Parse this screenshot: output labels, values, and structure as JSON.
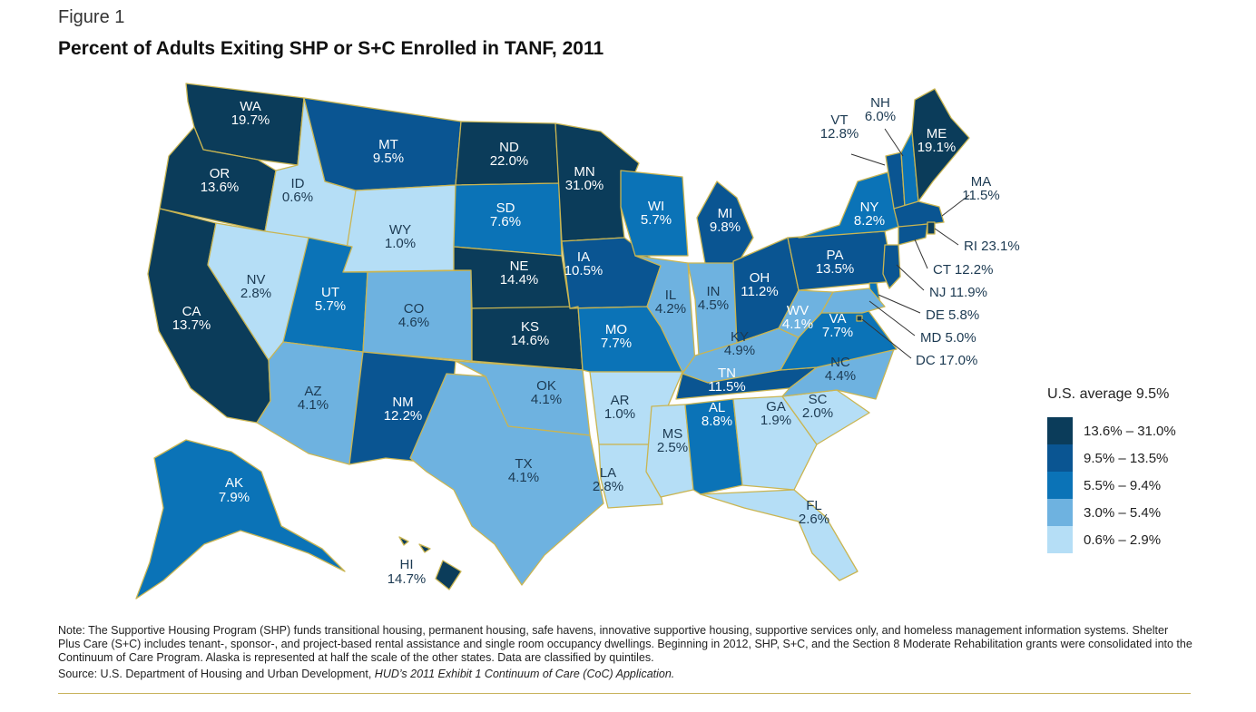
{
  "figure": {
    "label": "Figure 1",
    "title": "Percent of Adults Exiting SHP or S+C Enrolled in TANF, 2011"
  },
  "colors": {
    "q5": "#0b3c5a",
    "q4": "#0a5592",
    "q3": "#0b73b7",
    "q2": "#6eb2e0",
    "q1": "#b5def6",
    "border": "#c9b552"
  },
  "states": [
    {
      "abbr": "WA",
      "value": "19.7%",
      "q": 5
    },
    {
      "abbr": "OR",
      "value": "13.6%",
      "q": 5
    },
    {
      "abbr": "CA",
      "value": "13.7%",
      "q": 5
    },
    {
      "abbr": "ID",
      "value": "0.6%",
      "q": 1
    },
    {
      "abbr": "NV",
      "value": "2.8%",
      "q": 1
    },
    {
      "abbr": "MT",
      "value": "9.5%",
      "q": 4
    },
    {
      "abbr": "WY",
      "value": "1.0%",
      "q": 1
    },
    {
      "abbr": "UT",
      "value": "5.7%",
      "q": 3
    },
    {
      "abbr": "AZ",
      "value": "4.1%",
      "q": 2
    },
    {
      "abbr": "CO",
      "value": "4.6%",
      "q": 2
    },
    {
      "abbr": "NM",
      "value": "12.2%",
      "q": 4
    },
    {
      "abbr": "ND",
      "value": "22.0%",
      "q": 5
    },
    {
      "abbr": "SD",
      "value": "7.6%",
      "q": 3
    },
    {
      "abbr": "NE",
      "value": "14.4%",
      "q": 5
    },
    {
      "abbr": "KS",
      "value": "14.6%",
      "q": 5
    },
    {
      "abbr": "OK",
      "value": "4.1%",
      "q": 2
    },
    {
      "abbr": "TX",
      "value": "4.1%",
      "q": 2
    },
    {
      "abbr": "MN",
      "value": "31.0%",
      "q": 5
    },
    {
      "abbr": "IA",
      "value": "10.5%",
      "q": 4
    },
    {
      "abbr": "MO",
      "value": "7.7%",
      "q": 3
    },
    {
      "abbr": "AR",
      "value": "1.0%",
      "q": 1
    },
    {
      "abbr": "LA",
      "value": "2.8%",
      "q": 1
    },
    {
      "abbr": "WI",
      "value": "5.7%",
      "q": 3
    },
    {
      "abbr": "IL",
      "value": "4.2%",
      "q": 2
    },
    {
      "abbr": "MI",
      "value": "9.8%",
      "q": 4
    },
    {
      "abbr": "IN",
      "value": "4.5%",
      "q": 2
    },
    {
      "abbr": "OH",
      "value": "11.2%",
      "q": 4
    },
    {
      "abbr": "KY",
      "value": "4.9%",
      "q": 2
    },
    {
      "abbr": "TN",
      "value": "11.5%",
      "q": 4
    },
    {
      "abbr": "MS",
      "value": "2.5%",
      "q": 1
    },
    {
      "abbr": "AL",
      "value": "8.8%",
      "q": 3
    },
    {
      "abbr": "GA",
      "value": "1.9%",
      "q": 1
    },
    {
      "abbr": "FL",
      "value": "2.6%",
      "q": 1
    },
    {
      "abbr": "SC",
      "value": "2.0%",
      "q": 1
    },
    {
      "abbr": "NC",
      "value": "4.4%",
      "q": 2
    },
    {
      "abbr": "VA",
      "value": "7.7%",
      "q": 3
    },
    {
      "abbr": "WV",
      "value": "4.1%",
      "q": 2
    },
    {
      "abbr": "PA",
      "value": "13.5%",
      "q": 4
    },
    {
      "abbr": "NY",
      "value": "8.2%",
      "q": 3
    },
    {
      "abbr": "VT",
      "value": "12.8%",
      "q": 4
    },
    {
      "abbr": "NH",
      "value": "6.0%",
      "q": 3
    },
    {
      "abbr": "ME",
      "value": "19.1%",
      "q": 5
    },
    {
      "abbr": "MA",
      "value": "11.5%",
      "q": 4
    },
    {
      "abbr": "RI",
      "value": "23.1%",
      "q": 5
    },
    {
      "abbr": "CT",
      "value": "12.2%",
      "q": 4
    },
    {
      "abbr": "NJ",
      "value": "11.9%",
      "q": 4
    },
    {
      "abbr": "DE",
      "value": "5.8%",
      "q": 3
    },
    {
      "abbr": "MD",
      "value": "5.0%",
      "q": 2
    },
    {
      "abbr": "DC",
      "value": "17.0%",
      "q": 5
    },
    {
      "abbr": "AK",
      "value": "7.9%",
      "q": 3
    },
    {
      "abbr": "HI",
      "value": "14.7%",
      "q": 5
    }
  ],
  "legend": {
    "title": "U.S. average 9.5%",
    "items": [
      {
        "label": "13.6% – 31.0%",
        "q": 5
      },
      {
        "label": "9.5% – 13.5%",
        "q": 4
      },
      {
        "label": "5.5% – 9.4%",
        "q": 3
      },
      {
        "label": "3.0% – 5.4%",
        "q": 2
      },
      {
        "label": "0.6% – 2.9%",
        "q": 1
      }
    ]
  },
  "notes": {
    "text": "Note: The Supportive Housing Program (SHP) funds transitional housing, permanent housing, safe havens, innovative supportive housing, supportive services only, and homeless management information systems. Shelter Plus Care (S+C) includes tenant-, sponsor-, and project-based rental assistance and single room occupancy dwellings. Beginning in 2012, SHP, S+C, and the Section 8 Moderate Rehabilitation grants were consolidated into the Continuum of Care Program. Alaska is represented at half the scale of the other states. Data are classified by quintiles.",
    "source_prefix": "Source: U.S. Department of Housing and Urban Development, ",
    "source_title": "HUD’s 2011 Exhibit 1 Continuum of Care (CoC) Application."
  }
}
